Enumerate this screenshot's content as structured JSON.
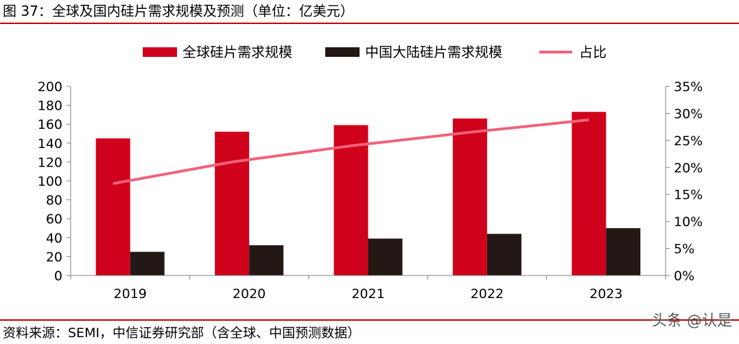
{
  "header": {
    "title": "图 37：全球及国内硅片需求规模及预测（单位：亿美元）"
  },
  "footer": {
    "source": "资料来源：SEMI，中信证券研究部（含全球、中国预测数据）"
  },
  "watermark": {
    "text": "头条 @认是"
  },
  "chart_data": {
    "type": "bar",
    "categories": [
      "2019",
      "2020",
      "2021",
      "2022",
      "2023"
    ],
    "series": [
      {
        "name": "全球硅片需求规模",
        "kind": "bar",
        "axis": "left",
        "color": "#d0021b",
        "values": [
          145,
          152,
          159,
          166,
          173
        ]
      },
      {
        "name": "中国大陆硅片需求规模",
        "kind": "bar",
        "axis": "left",
        "color": "#231815",
        "values": [
          25,
          32,
          39,
          44,
          50
        ]
      },
      {
        "name": "占比",
        "kind": "line",
        "axis": "right",
        "color": "#f0627a",
        "values": [
          0.17,
          0.21,
          0.24,
          0.265,
          0.288
        ]
      }
    ],
    "ylim": [
      0,
      200
    ],
    "yticks": [
      "0",
      "20",
      "40",
      "60",
      "80",
      "100",
      "120",
      "140",
      "160",
      "180",
      "200"
    ],
    "y2lim": [
      0,
      0.35
    ],
    "y2ticks": [
      "0%",
      "5%",
      "10%",
      "15%",
      "20%",
      "25%",
      "30%",
      "35%"
    ],
    "legend_position": "top-center",
    "grid": false
  }
}
